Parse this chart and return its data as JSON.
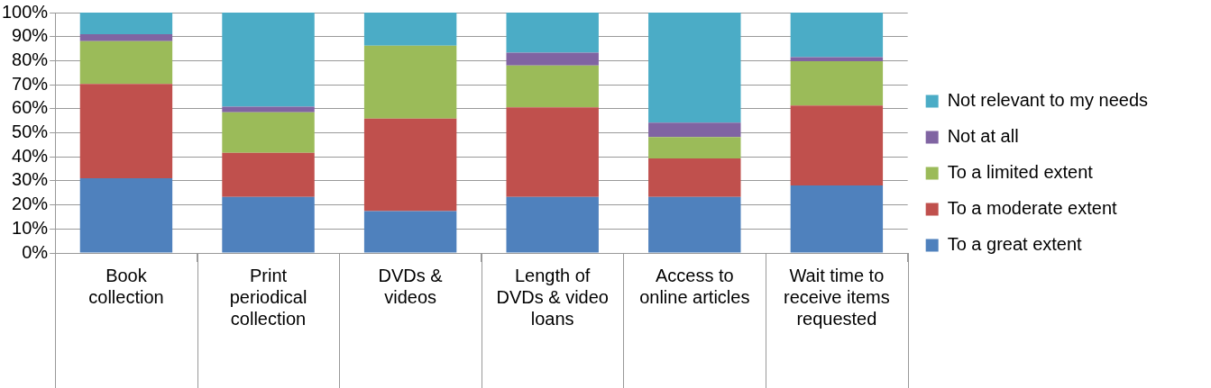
{
  "chart_data": {
    "type": "bar",
    "stacked": true,
    "categories": [
      "Book collection",
      "Print periodical collection",
      "DVDs & videos",
      "Length of DVDs & video loans",
      "Access to online articles",
      "Wait time to receive items requested"
    ],
    "series": [
      {
        "name": "To a great extent",
        "color": "#4f81bd",
        "values": [
          31.1,
          23.3,
          17.4,
          23.3,
          23.3,
          28.1
        ]
      },
      {
        "name": "To a moderate extent",
        "color": "#c0504d",
        "values": [
          39.2,
          18.4,
          38.5,
          37.3,
          16.0,
          33.2
        ]
      },
      {
        "name": "To a limited extent",
        "color": "#9bbb59",
        "values": [
          17.8,
          16.8,
          30.3,
          17.4,
          8.9,
          18.5
        ]
      },
      {
        "name": "Not at all",
        "color": "#8064a2",
        "values": [
          2.9,
          2.4,
          0,
          5.3,
          6.0,
          1.7
        ]
      },
      {
        "name": "Not relevant to my needs",
        "color": "#4bacc6",
        "values": [
          9.0,
          39.1,
          13.8,
          16.7,
          45.8,
          18.5
        ]
      }
    ],
    "ylim": [
      0,
      100
    ],
    "yticks": [
      {
        "value": 0,
        "label": "0%"
      },
      {
        "value": 10,
        "label": "10%"
      },
      {
        "value": 20,
        "label": "20%"
      },
      {
        "value": 30,
        "label": "30%"
      },
      {
        "value": 40,
        "label": "40%"
      },
      {
        "value": 50,
        "label": "50%"
      },
      {
        "value": 60,
        "label": "60%"
      },
      {
        "value": 70,
        "label": "70%"
      },
      {
        "value": 80,
        "label": "80%"
      },
      {
        "value": 90,
        "label": "90%"
      },
      {
        "value": 100,
        "label": "100%"
      }
    ],
    "grid": "y",
    "legend": "right"
  }
}
